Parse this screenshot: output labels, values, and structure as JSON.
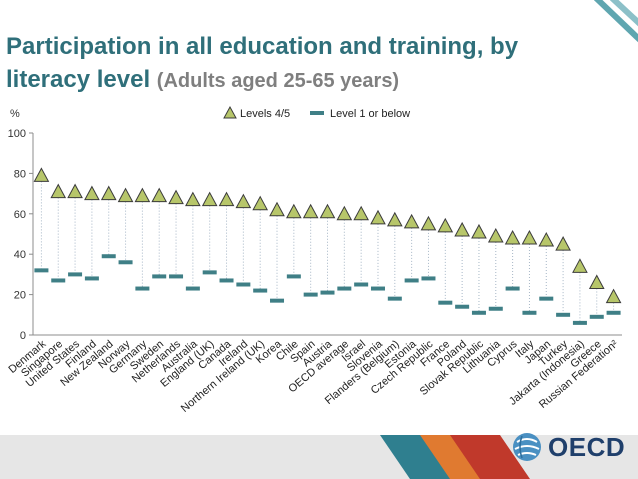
{
  "title": {
    "main": "Participation in all education and training, by literacy level",
    "subtitle": "(Adults aged 25-65 years)"
  },
  "colors": {
    "title": "#2f6f7a",
    "triangle_fill": "#b7c66a",
    "triangle_stroke": "#3b3b3b",
    "dash": "#3f7f86",
    "drop_line": "#a6b6c6",
    "footer_band": "#e6e6e6"
  },
  "footer": {
    "logo_text": "OECD",
    "logo_icon": "oecd-globe-icon"
  },
  "chart_data": {
    "type": "scatter",
    "ylabel": "%",
    "ylim": [
      0,
      100
    ],
    "yticks": [
      0,
      20,
      40,
      60,
      80,
      100
    ],
    "grid": false,
    "legend_position": "top",
    "categories": [
      "Denmark",
      "Singapore",
      "United States",
      "Finland",
      "New Zealand",
      "Norway",
      "Germany",
      "Sweden",
      "Netherlands",
      "Australia",
      "England (UK)",
      "Canada",
      "Ireland",
      "Northern Ireland (UK)",
      "Korea",
      "Chile",
      "Spain",
      "Austria",
      "OECD average",
      "Israel",
      "Slovenia",
      "Flanders (Belgium)",
      "Estonia",
      "Czech Republic",
      "France",
      "Poland",
      "Slovak Republic",
      "Lithuania",
      "Cyprus",
      "Italy",
      "Japan",
      "Turkey",
      "Jakarta (Indonesia)",
      "Greece",
      "Russian Federation²"
    ],
    "series": [
      {
        "name": "Levels 4/5",
        "marker": "triangle",
        "values": [
          79,
          71,
          71,
          70,
          70,
          69,
          69,
          69,
          68,
          67,
          67,
          67,
          66,
          65,
          62,
          61,
          61,
          61,
          60,
          60,
          58,
          57,
          56,
          55,
          54,
          52,
          51,
          49,
          48,
          48,
          47,
          45,
          34,
          26,
          19
        ]
      },
      {
        "name": "Level 1 or below",
        "marker": "dash",
        "values": [
          32,
          27,
          30,
          28,
          39,
          36,
          23,
          29,
          29,
          23,
          31,
          27,
          25,
          22,
          17,
          29,
          20,
          21,
          23,
          25,
          23,
          18,
          27,
          28,
          16,
          14,
          11,
          13,
          23,
          11,
          18,
          10,
          6,
          9,
          11
        ]
      }
    ]
  }
}
